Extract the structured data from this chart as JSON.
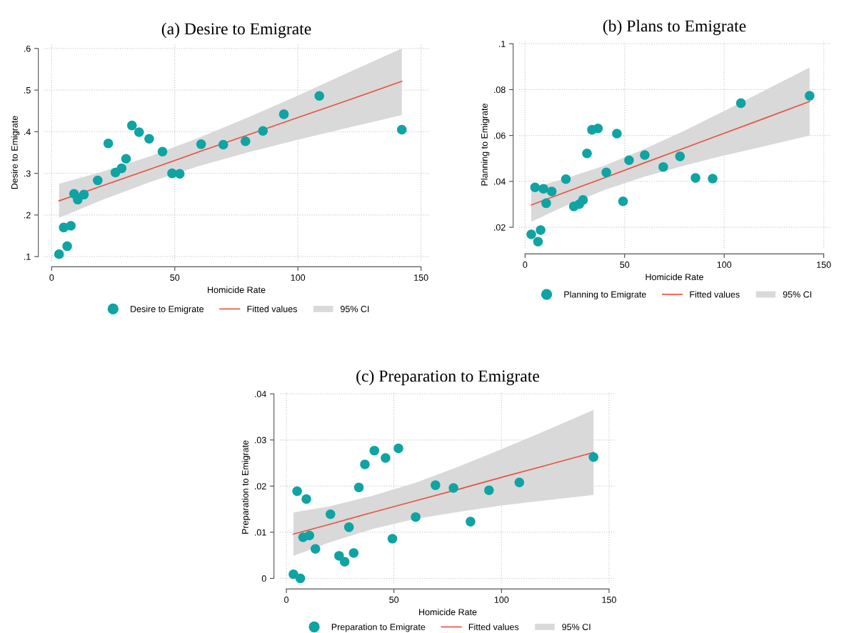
{
  "chart_data": [
    {
      "type": "scatter",
      "title": "(a) Desire to Emigrate",
      "xlabel": "Homicide Rate",
      "ylabel": "Desire to Emigrate",
      "xlim": [
        -3,
        153
      ],
      "ylim": [
        0.09,
        0.61
      ],
      "xticks": [
        0,
        50,
        100,
        150
      ],
      "yticks": [
        {
          "value": 0.1,
          "label": ".1"
        },
        {
          "value": 0.2,
          "label": ".2"
        },
        {
          "value": 0.3,
          "label": ".3"
        },
        {
          "value": 0.4,
          "label": ".4"
        },
        {
          "value": 0.5,
          "label": ".5"
        },
        {
          "value": 0.6,
          "label": ".6"
        }
      ],
      "grid": true,
      "legend": "bottom",
      "series": [
        {
          "name": "Desire to Emigrate",
          "marker": "circle",
          "color": "#0fa3a3",
          "x": [
            3.0,
            4.9,
            7.8,
            6.3,
            9.1,
            10.6,
            13.1,
            18.7,
            23.0,
            25.9,
            28.4,
            30.2,
            32.6,
            35.5,
            39.6,
            45.0,
            48.9,
            52.0,
            60.7,
            69.7,
            78.7,
            85.8,
            94.3,
            108.7,
            142.2
          ],
          "values": [
            0.106,
            0.17,
            0.174,
            0.125,
            0.251,
            0.237,
            0.249,
            0.283,
            0.372,
            0.302,
            0.312,
            0.335,
            0.415,
            0.399,
            0.383,
            0.352,
            0.3,
            0.299,
            0.37,
            0.369,
            0.377,
            0.402,
            0.442,
            0.486,
            0.405
          ]
        },
        {
          "name": "Fitted values",
          "type": "line",
          "color": "#e8533f",
          "x": [
            3.0,
            20,
            40,
            60,
            80,
            100,
            120,
            142.2
          ],
          "values": [
            0.234,
            0.269,
            0.31,
            0.352,
            0.393,
            0.434,
            0.475,
            0.521
          ],
          "lower": [
            0.193,
            0.235,
            0.279,
            0.318,
            0.351,
            0.381,
            0.409,
            0.44
          ],
          "upper": [
            0.275,
            0.303,
            0.341,
            0.386,
            0.435,
            0.487,
            0.541,
            0.6
          ]
        },
        {
          "name": "95% CI",
          "type": "area",
          "color": "#d9d9d9"
        }
      ]
    },
    {
      "type": "scatter",
      "title": "(b) Plans to Emigrate",
      "xlabel": "Homicide Rate",
      "ylabel": "Planning to Emigrate",
      "xlim": [
        -3,
        153
      ],
      "ylim": [
        0.011,
        0.101
      ],
      "xticks": [
        0,
        50,
        100,
        150
      ],
      "yticks": [
        {
          "value": 0.02,
          "label": ".02"
        },
        {
          "value": 0.04,
          "label": ".04"
        },
        {
          "value": 0.06,
          "label": ".06"
        },
        {
          "value": 0.08,
          "label": ".08"
        },
        {
          "value": 0.1,
          "label": ".1"
        }
      ],
      "grid": true,
      "legend": "bottom",
      "series": [
        {
          "name": "Planning to Emigrate",
          "marker": "circle",
          "color": "#0fa3a3",
          "x": [
            3.1,
            6.5,
            7.8,
            5.0,
            9.2,
            10.6,
            13.4,
            20.5,
            24.5,
            27.2,
            29.1,
            31.1,
            33.6,
            36.6,
            40.8,
            46.1,
            49.2,
            52.2,
            60.1,
            69.4,
            77.8,
            85.6,
            94.2,
            108.4,
            142.9
          ],
          "values": [
            0.0169,
            0.0137,
            0.0188,
            0.0374,
            0.0368,
            0.0305,
            0.0356,
            0.041,
            0.0291,
            0.0301,
            0.0319,
            0.0522,
            0.0625,
            0.0631,
            0.0439,
            0.0608,
            0.0313,
            0.0492,
            0.0515,
            0.0463,
            0.0509,
            0.0415,
            0.0412,
            0.0741,
            0.0773
          ]
        },
        {
          "name": "Fitted values",
          "type": "line",
          "color": "#e8533f",
          "x": [
            3.1,
            20,
            40,
            60,
            80,
            100,
            120,
            142.9
          ],
          "values": [
            0.0297,
            0.0352,
            0.0416,
            0.0481,
            0.0545,
            0.061,
            0.0674,
            0.0748
          ],
          "lower": [
            0.0224,
            0.0292,
            0.0363,
            0.0421,
            0.0469,
            0.0513,
            0.0553,
            0.06
          ],
          "upper": [
            0.037,
            0.0412,
            0.0469,
            0.0541,
            0.0621,
            0.0707,
            0.0795,
            0.0896
          ]
        },
        {
          "name": "95% CI",
          "type": "area",
          "color": "#d9d9d9"
        }
      ]
    },
    {
      "type": "scatter",
      "title": "(c) Preparation to Emigrate",
      "xlabel": "Homicide Rate",
      "ylabel": "Preparation to Emigrate",
      "xlim": [
        -3,
        153
      ],
      "ylim": [
        -0.001,
        0.0405
      ],
      "xticks": [
        0,
        50,
        100,
        150
      ],
      "yticks": [
        0,
        {
          "value": 0.01,
          "label": ".01"
        },
        {
          "value": 0.02,
          "label": ".02"
        },
        {
          "value": 0.03,
          "label": ".03"
        },
        {
          "value": 0.04,
          "label": ".04"
        }
      ],
      "grid": true,
      "legend": "bottom",
      "series": [
        {
          "name": "Preparation to Emigrate",
          "marker": "circle",
          "color": "#0fa3a3",
          "x": [
            3.3,
            6.5,
            5.0,
            9.3,
            7.8,
            10.7,
            13.5,
            20.5,
            24.5,
            27.1,
            29.1,
            31.3,
            33.7,
            36.5,
            40.9,
            46.1,
            49.3,
            52.1,
            60.1,
            69.3,
            77.7,
            85.6,
            94.2,
            108.3,
            142.8
          ],
          "values": [
            0.0009,
            0,
            0.0189,
            0.0172,
            0.0089,
            0.0093,
            0.0064,
            0.0139,
            0.0049,
            0.0036,
            0.0111,
            0.0055,
            0.0197,
            0.0247,
            0.0277,
            0.0261,
            0.0086,
            0.0282,
            0.0133,
            0.0202,
            0.0196,
            0.0123,
            0.0191,
            0.0208,
            0.0263
          ]
        },
        {
          "name": "Fitted values",
          "type": "line",
          "color": "#e8533f",
          "x": [
            3.3,
            20,
            40,
            60,
            80,
            100,
            120,
            142.8
          ],
          "values": [
            0.0096,
            0.0117,
            0.0143,
            0.0168,
            0.0193,
            0.0219,
            0.0244,
            0.0273
          ],
          "lower": [
            0.0049,
            0.0078,
            0.0107,
            0.0129,
            0.0144,
            0.0158,
            0.0169,
            0.0181
          ],
          "upper": [
            0.0143,
            0.0156,
            0.0179,
            0.0207,
            0.0242,
            0.028,
            0.0319,
            0.0365
          ]
        },
        {
          "name": "95% CI",
          "type": "area",
          "color": "#d9d9d9"
        }
      ]
    }
  ]
}
